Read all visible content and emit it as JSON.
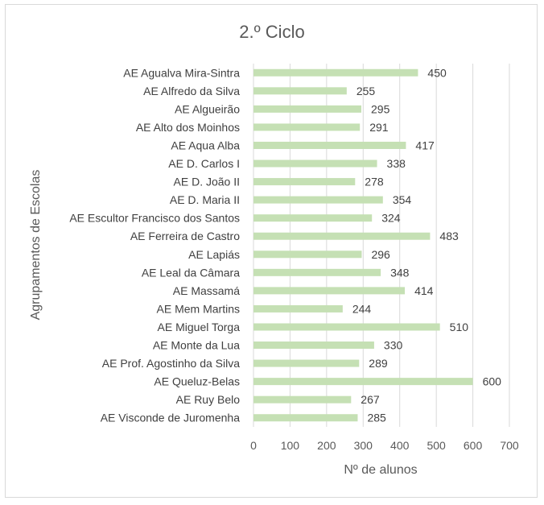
{
  "chart_data": {
    "type": "bar",
    "orientation": "horizontal",
    "title": "2.º Ciclo",
    "xlabel": "Nº de alunos",
    "ylabel": "Agrupamentos de Escolas",
    "xlim": [
      0,
      700
    ],
    "xticks": [
      0,
      100,
      200,
      300,
      400,
      500,
      600,
      700
    ],
    "grid": true,
    "bar_color": "#c5e0b4",
    "categories": [
      "AE Agualva Mira-Sintra",
      "AE Alfredo da Silva",
      "AE Algueirão",
      "AE Alto dos Moinhos",
      "AE Aqua Alba",
      "AE D. Carlos I",
      "AE D. João II",
      "AE D. Maria II",
      "AE Escultor Francisco dos Santos",
      "AE Ferreira de Castro",
      "AE Lapiás",
      "AE Leal da Câmara",
      "AE Massamá",
      "AE Mem Martins",
      "AE Miguel Torga",
      "AE Monte da Lua",
      "AE Prof. Agostinho da Silva",
      "AE Queluz-Belas",
      "AE Ruy Belo",
      "AE Visconde de Juromenha"
    ],
    "values": [
      450,
      255,
      295,
      291,
      417,
      338,
      278,
      354,
      324,
      483,
      296,
      348,
      414,
      244,
      510,
      330,
      289,
      600,
      267,
      285
    ]
  }
}
